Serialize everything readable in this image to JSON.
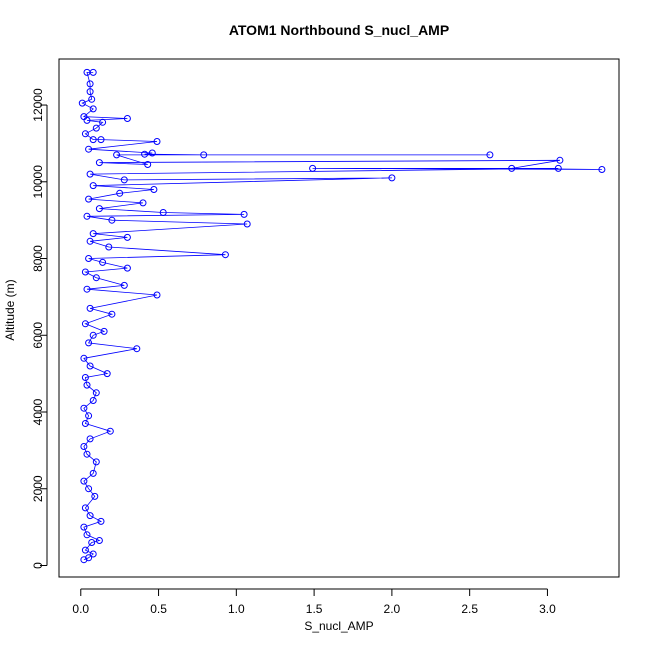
{
  "chart_data": {
    "type": "scatter",
    "title": "ATOM1 Northbound S_nucl_AMP",
    "xlabel": "S_nucl_AMP",
    "ylabel": "Altitude (m)",
    "xlim": [
      -0.14,
      3.46
    ],
    "ylim": [
      -300,
      13200
    ],
    "xticks": [
      0.0,
      0.5,
      1.0,
      1.5,
      2.0,
      2.5,
      3.0
    ],
    "xtick_labels": [
      "0.0",
      "0.5",
      "1.0",
      "1.5",
      "2.0",
      "2.5",
      "3.0"
    ],
    "yticks": [
      0,
      2000,
      4000,
      6000,
      8000,
      10000,
      12000
    ],
    "ytick_labels": [
      "0",
      "2000",
      "4000",
      "6000",
      "8000",
      "10000",
      "12000"
    ],
    "grid": false,
    "series": [
      {
        "color": "#0000ff",
        "marker": "open-circle",
        "connected": true,
        "points": [
          [
            0.02,
            150
          ],
          [
            0.05,
            200
          ],
          [
            0.08,
            300
          ],
          [
            0.03,
            400
          ],
          [
            0.07,
            600
          ],
          [
            0.12,
            650
          ],
          [
            0.04,
            800
          ],
          [
            0.02,
            1000
          ],
          [
            0.13,
            1150
          ],
          [
            0.06,
            1300
          ],
          [
            0.03,
            1500
          ],
          [
            0.09,
            1800
          ],
          [
            0.05,
            2000
          ],
          [
            0.02,
            2200
          ],
          [
            0.08,
            2400
          ],
          [
            0.1,
            2700
          ],
          [
            0.04,
            2900
          ],
          [
            0.02,
            3100
          ],
          [
            0.06,
            3300
          ],
          [
            0.19,
            3500
          ],
          [
            0.03,
            3700
          ],
          [
            0.05,
            3900
          ],
          [
            0.02,
            4100
          ],
          [
            0.08,
            4300
          ],
          [
            0.1,
            4500
          ],
          [
            0.04,
            4700
          ],
          [
            0.03,
            4900
          ],
          [
            0.17,
            5000
          ],
          [
            0.06,
            5200
          ],
          [
            0.02,
            5400
          ],
          [
            0.36,
            5650
          ],
          [
            0.05,
            5800
          ],
          [
            0.08,
            6000
          ],
          [
            0.15,
            6100
          ],
          [
            0.03,
            6300
          ],
          [
            0.2,
            6550
          ],
          [
            0.06,
            6700
          ],
          [
            0.49,
            7050
          ],
          [
            0.04,
            7200
          ],
          [
            0.28,
            7300
          ],
          [
            0.1,
            7500
          ],
          [
            0.03,
            7650
          ],
          [
            0.3,
            7750
          ],
          [
            0.14,
            7900
          ],
          [
            0.05,
            8000
          ],
          [
            0.93,
            8100
          ],
          [
            0.18,
            8300
          ],
          [
            0.06,
            8450
          ],
          [
            0.3,
            8550
          ],
          [
            0.08,
            8650
          ],
          [
            1.07,
            8900
          ],
          [
            0.2,
            9000
          ],
          [
            0.04,
            9100
          ],
          [
            1.05,
            9150
          ],
          [
            0.53,
            9200
          ],
          [
            0.12,
            9300
          ],
          [
            0.4,
            9450
          ],
          [
            0.05,
            9550
          ],
          [
            0.25,
            9700
          ],
          [
            0.47,
            9800
          ],
          [
            0.08,
            9900
          ],
          [
            2.0,
            10100
          ],
          [
            0.28,
            10050
          ],
          [
            0.06,
            10200
          ],
          [
            3.07,
            10350
          ],
          [
            1.49,
            10350
          ],
          [
            3.35,
            10320
          ],
          [
            2.77,
            10350
          ],
          [
            3.08,
            10560
          ],
          [
            0.12,
            10500
          ],
          [
            0.43,
            10450
          ],
          [
            0.23,
            10700
          ],
          [
            2.63,
            10700
          ],
          [
            0.79,
            10700
          ],
          [
            0.41,
            10720
          ],
          [
            0.46,
            10750
          ],
          [
            0.05,
            10850
          ],
          [
            0.49,
            11050
          ],
          [
            0.13,
            11100
          ],
          [
            0.08,
            11100
          ],
          [
            0.03,
            11250
          ],
          [
            0.1,
            11400
          ],
          [
            0.14,
            11550
          ],
          [
            0.04,
            11600
          ],
          [
            0.3,
            11650
          ],
          [
            0.02,
            11700
          ],
          [
            0.08,
            11900
          ],
          [
            0.01,
            12050
          ],
          [
            0.07,
            12150
          ],
          [
            0.06,
            12350
          ],
          [
            0.06,
            12550
          ],
          [
            0.04,
            12850
          ],
          [
            0.08,
            12850
          ]
        ]
      }
    ]
  }
}
